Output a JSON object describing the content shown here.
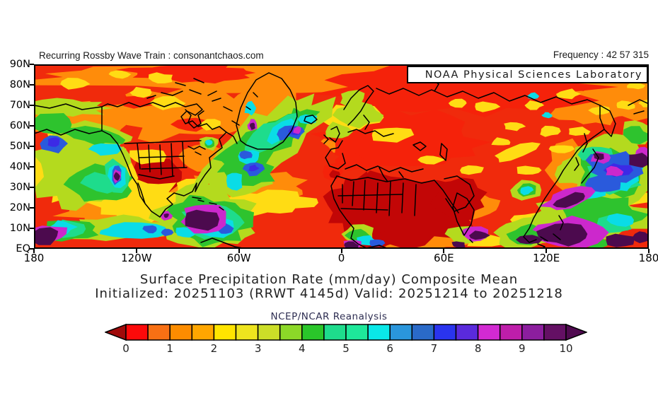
{
  "header": {
    "page_title": "Recurring Rossby Wave Train : consonantchaos.com",
    "frequency": "Frequency : 42 57 315",
    "org_box": "NOAA Physical Sciences Laboratory"
  },
  "map": {
    "lat_labels": [
      "90N",
      "80N",
      "70N",
      "60N",
      "50N",
      "40N",
      "30N",
      "20N",
      "10N",
      "EQ"
    ],
    "lon_labels": [
      "180",
      "120W",
      "60W",
      "0",
      "60E",
      "120E",
      "180"
    ]
  },
  "caption": {
    "line1": "Surface Precipitation Rate (mm/day) Composite Mean",
    "line2": "Initialized: 20251103 (RRWT 4145d) Valid: 20251214 to 20251218",
    "source": "NCEP/NCAR Reanalysis"
  },
  "colorbar": {
    "tick_labels": [
      "0",
      "1",
      "2",
      "3",
      "4",
      "5",
      "6",
      "7",
      "8",
      "9",
      "10"
    ],
    "segment_colors": [
      "#fc0a0a",
      "#f87014",
      "#fc8c00",
      "#ffa600",
      "#ffe400",
      "#eee41e",
      "#ccde28",
      "#8cd828",
      "#2ac62a",
      "#1edc8c",
      "#1ee89a",
      "#0ae8e8",
      "#2a96dc",
      "#2a6ac8",
      "#2a34ee",
      "#5a2adc",
      "#d22ad2",
      "#be1eaa",
      "#8c1e9e",
      "#641064"
    ],
    "left_arrow_color": "#a00a0a",
    "right_arrow_color": "#500a50"
  }
}
